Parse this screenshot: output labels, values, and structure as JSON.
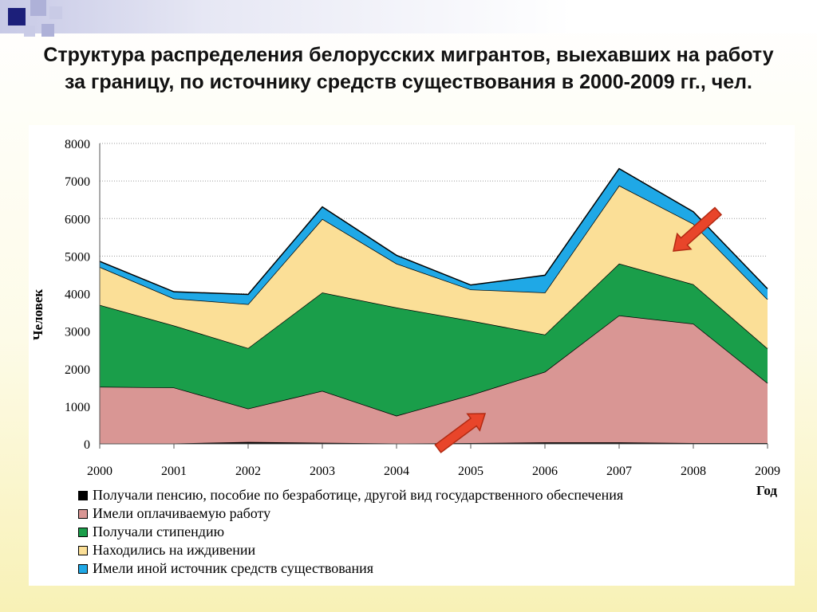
{
  "slide": {
    "title": "Структура распределения белорусских мигрантов, выехавших на работу за границу, по источнику средств существования в 2000-2009 гг., чел."
  },
  "colors": {
    "pension": "#000000",
    "paid_work": "#d99694",
    "scholarship": "#1a9e4a",
    "dependents": "#fbdf97",
    "other": "#1fa8e6",
    "arrow": "#e8452a",
    "grid": "#9a9a9a"
  },
  "chart_data": {
    "type": "area",
    "stacked": true,
    "title": "",
    "xlabel": "Год",
    "ylabel": "Человек",
    "ylim": [
      0,
      8000
    ],
    "yticks": [
      0,
      1000,
      2000,
      3000,
      4000,
      5000,
      6000,
      7000,
      8000
    ],
    "grid": "horizontal dotted",
    "legend_position": "bottom",
    "categories": [
      "2000",
      "2001",
      "2002",
      "2003",
      "2004",
      "2005",
      "2006",
      "2007",
      "2008",
      "2009"
    ],
    "series": [
      {
        "name": "Получали пенсию, пособие по безработице, другой вид государственного обеспечения",
        "color": "#000000",
        "values": [
          10,
          10,
          50,
          30,
          10,
          20,
          40,
          40,
          20,
          20
        ]
      },
      {
        "name": "Имели оплачиваемую работу",
        "color": "#d99694",
        "values": [
          1510,
          1490,
          890,
          1380,
          740,
          1280,
          1880,
          3380,
          3180,
          1600
        ]
      },
      {
        "name": "Получали стипендию",
        "color": "#1a9e4a",
        "values": [
          2180,
          1650,
          1610,
          2620,
          2880,
          1980,
          990,
          1380,
          1050,
          920
        ]
      },
      {
        "name": "Находились на иждивении",
        "color": "#fbdf97",
        "values": [
          1010,
          720,
          1170,
          1960,
          1170,
          830,
          1120,
          2080,
          1610,
          1310
        ]
      },
      {
        "name": "Имели иной источник средств существования",
        "color": "#1fa8e6",
        "values": [
          150,
          180,
          260,
          320,
          220,
          120,
          460,
          450,
          320,
          280
        ]
      }
    ],
    "annotations": [
      "arrow pointing to the yellow series peak near 2008",
      "arrow pointing to the pink series near 2005"
    ]
  }
}
